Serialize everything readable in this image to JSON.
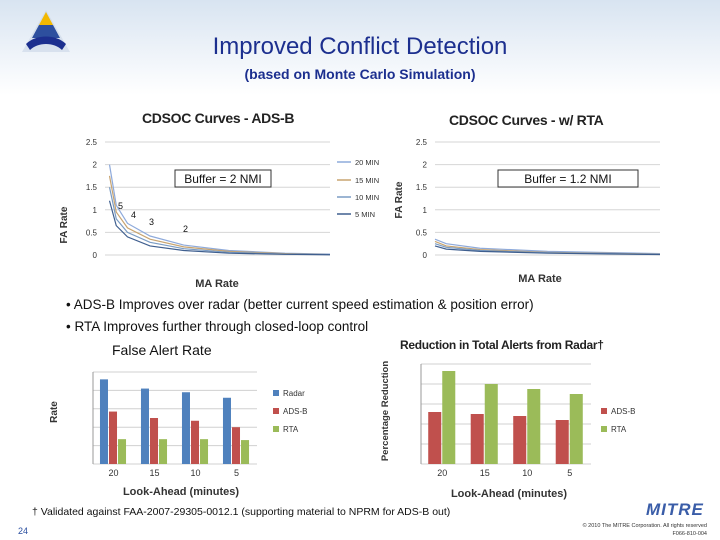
{
  "slide": {
    "title": "Improved Conflict Detection",
    "subtitle": "(based on Monte Carlo Simulation)",
    "bullets": [
      "• ADS-B Improves over radar (better current speed estimation & position error)",
      "• RTA  Improves further through closed-loop control"
    ],
    "false_alert_label": "False Alert Rate",
    "footnote": "† Validated against FAA-2007-29305-0012.1 (supporting material to NPRM for ADS-B out)",
    "page_number": "24",
    "brand": "MITRE",
    "copyright": "© 2010 The MITRE Corporation. All rights reserved",
    "doc_code": "F066-810-004"
  },
  "colors": {
    "title": "#1c2f8f",
    "radar": "#4f81bd",
    "adsb": "#c0504d",
    "rta": "#9bbb59"
  },
  "chart_data": [
    {
      "type": "line",
      "title": "CDSOC Curves - ADS-B",
      "xlabel": "MA Rate",
      "ylabel": "FA Rate",
      "ylim": [
        0,
        2.5
      ],
      "yticks": [
        "0",
        "0.5",
        "1",
        "1.5",
        "2",
        "2.5"
      ],
      "annotation": "Buffer = 2 NMI",
      "point_labels": [
        "5",
        "4",
        "3",
        "2"
      ],
      "grid": true,
      "legend_position": "right",
      "series": [
        {
          "name": "20 MIN",
          "x": [
            0.02,
            0.05,
            0.1,
            0.2,
            0.35,
            0.55,
            0.8,
            1.0
          ],
          "y": [
            2.0,
            1.1,
            0.7,
            0.42,
            0.22,
            0.1,
            0.04,
            0.02
          ]
        },
        {
          "name": "15 MIN",
          "x": [
            0.02,
            0.05,
            0.1,
            0.2,
            0.35,
            0.55,
            0.8,
            1.0
          ],
          "y": [
            1.75,
            0.95,
            0.6,
            0.35,
            0.18,
            0.08,
            0.03,
            0.01
          ]
        },
        {
          "name": "10 MIN",
          "x": [
            0.02,
            0.05,
            0.1,
            0.2,
            0.35,
            0.55,
            0.8,
            1.0
          ],
          "y": [
            1.5,
            0.8,
            0.5,
            0.28,
            0.14,
            0.06,
            0.02,
            0.01
          ]
        },
        {
          "name": "5 MIN",
          "x": [
            0.02,
            0.05,
            0.1,
            0.2,
            0.35,
            0.55,
            0.8,
            1.0
          ],
          "y": [
            1.2,
            0.65,
            0.4,
            0.2,
            0.1,
            0.04,
            0.015,
            0.005
          ]
        }
      ]
    },
    {
      "type": "line",
      "title": "CDSOC Curves - w/ RTA",
      "xlabel": "MA Rate",
      "ylabel": "FA Rate",
      "ylim": [
        0,
        2.5
      ],
      "yticks": [
        "0",
        "0.5",
        "1",
        "1.5",
        "2",
        "2.5"
      ],
      "annotation": "Buffer = 1.2 NMI",
      "grid": true,
      "series": [
        {
          "x": [
            0,
            0.05,
            0.2,
            0.5,
            1.0
          ],
          "y": [
            0.35,
            0.25,
            0.15,
            0.08,
            0.03
          ]
        },
        {
          "x": [
            0,
            0.05,
            0.2,
            0.5,
            1.0
          ],
          "y": [
            0.3,
            0.2,
            0.12,
            0.06,
            0.02
          ]
        },
        {
          "x": [
            0,
            0.05,
            0.2,
            0.5,
            1.0
          ],
          "y": [
            0.25,
            0.17,
            0.1,
            0.05,
            0.015
          ]
        },
        {
          "x": [
            0,
            0.05,
            0.2,
            0.5,
            1.0
          ],
          "y": [
            0.2,
            0.13,
            0.08,
            0.04,
            0.01
          ]
        }
      ]
    },
    {
      "type": "bar",
      "title": "",
      "xlabel": "Look-Ahead (minutes)",
      "ylabel": "Rate",
      "categories": [
        "20",
        "15",
        "10",
        "5"
      ],
      "ylim": [
        0,
        1
      ],
      "grid": true,
      "legend_position": "right",
      "series": [
        {
          "name": "Radar",
          "values": [
            0.92,
            0.82,
            0.78,
            0.72
          ]
        },
        {
          "name": "ADS-B",
          "values": [
            0.57,
            0.5,
            0.47,
            0.4
          ]
        },
        {
          "name": "RTA",
          "values": [
            0.27,
            0.27,
            0.27,
            0.26
          ]
        }
      ]
    },
    {
      "type": "bar",
      "title": "Reduction in Total Alerts from Radar†",
      "xlabel": "Look-Ahead (minutes)",
      "ylabel": "Percentage Reduction",
      "categories": [
        "20",
        "15",
        "10",
        "5"
      ],
      "ylim": [
        0,
        1
      ],
      "grid": true,
      "legend_position": "right",
      "series": [
        {
          "name": "ADS-B",
          "values": [
            0.52,
            0.5,
            0.48,
            0.44
          ]
        },
        {
          "name": "RTA",
          "values": [
            0.93,
            0.8,
            0.75,
            0.7
          ]
        }
      ]
    }
  ]
}
